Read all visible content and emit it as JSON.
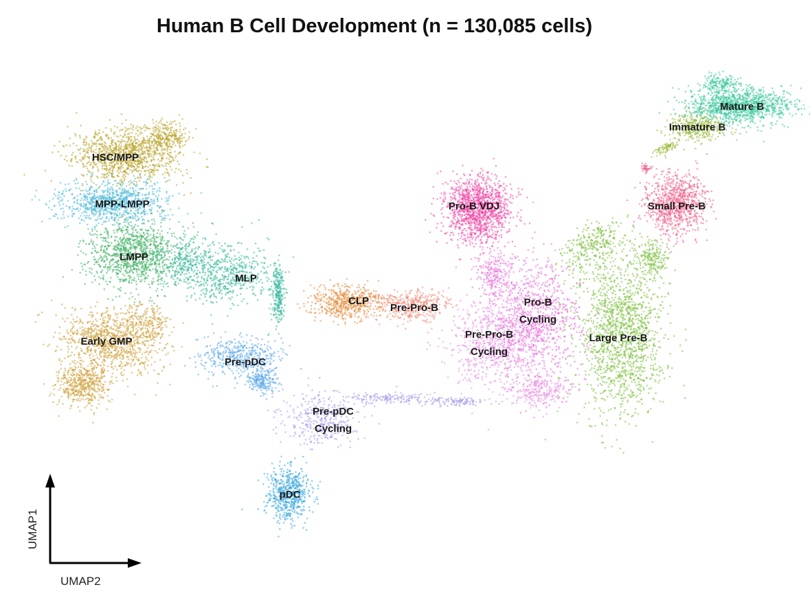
{
  "chart_data": {
    "type": "scatter",
    "title": "Human B Cell Development (n = 130,085 cells)",
    "xlabel": "UMAP2",
    "ylabel": "UMAP1",
    "legend": "none",
    "grid": false,
    "clusters": [
      {
        "name": "HSC/MPP",
        "color": "#b8a326"
      },
      {
        "name": "MPP-LMPP",
        "color": "#48b8d8"
      },
      {
        "name": "LMPP",
        "color": "#3fb065"
      },
      {
        "name": "Early GMP",
        "color": "#cda13a"
      },
      {
        "name": "MLP",
        "color": "#34b89a"
      },
      {
        "name": "Pre-pDC",
        "color": "#5aa8e8"
      },
      {
        "name": "Pre-pDC\nCycling",
        "color": "#a99ae8"
      },
      {
        "name": "pDC",
        "color": "#3aa8e0"
      },
      {
        "name": "CLP",
        "color": "#e58a3a"
      },
      {
        "name": "Pre-Pro-B",
        "color": "#f08a7a"
      },
      {
        "name": "Pro-B VDJ",
        "color": "#f04aa8"
      },
      {
        "name": "Pro-B\nCycling",
        "color": "#e870d8"
      },
      {
        "name": "Pre-Pro-B\nCycling",
        "color": "#e890e0"
      },
      {
        "name": "Large Pre-B",
        "color": "#7cc03c"
      },
      {
        "name": "Small Pre-B",
        "color": "#f0608a"
      },
      {
        "name": "Immature B",
        "color": "#9ab83a"
      },
      {
        "name": "Mature B",
        "color": "#3ec8a0"
      }
    ]
  }
}
